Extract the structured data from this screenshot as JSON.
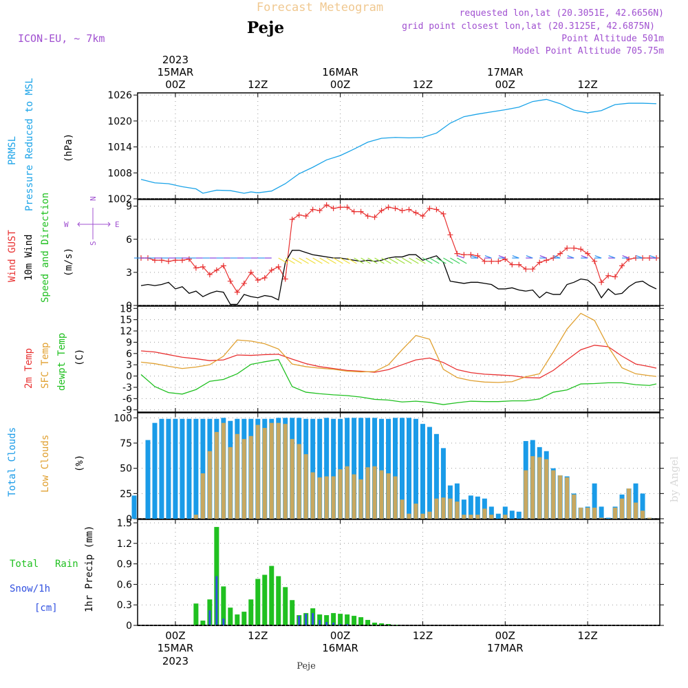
{
  "header": {
    "title": "Forecast Meteogram",
    "location": "Peje",
    "model": "ICON-EU, ~ 7km",
    "requested": "requested lon,lat (20.3051E, 42.6656N)",
    "grid": "grid point closest lon,lat (20.3125E, 42.6875N)",
    "altitude": "Point Altitude 501m",
    "model_altitude": "Model Point Altitude 705.75m",
    "footer_location": "Peje",
    "credit": "by Angel"
  },
  "time_axis": {
    "year": "2023",
    "ticks": [
      {
        "t": 0,
        "label": "00Z",
        "date": "15MAR",
        "year": "2023"
      },
      {
        "t": 12,
        "label": "12Z"
      },
      {
        "t": 24,
        "label": "00Z",
        "date": "16MAR"
      },
      {
        "t": 36,
        "label": "12Z"
      },
      {
        "t": 48,
        "label": "00Z",
        "date": "17MAR"
      },
      {
        "t": 60,
        "label": "12Z"
      }
    ],
    "t_min": -5.5,
    "t_max": 70.5
  },
  "colors": {
    "pressure": "#1aa3e8",
    "gust": "#e83030",
    "wind": "#000000",
    "temp": "#e83030",
    "sfc": "#e0a030",
    "dewpt": "#20c020",
    "total_cloud": "#1a9be8",
    "low_cloud": "#c8a860",
    "rain": "#20c020",
    "snow": "#3050e0",
    "label_purple": "#a050d0",
    "label_cyan": "#1aa3e8",
    "label_green": "#20c020",
    "label_orange": "#e0a030",
    "label_red": "#e83030"
  },
  "chart_data": [
    {
      "type": "line",
      "panel": "pressure",
      "labels": [
        "PRMSL",
        "Pressure Reduced to MSL"
      ],
      "ylabel": "(hPa)",
      "ylim": [
        1002,
        1026.5
      ],
      "yticks": [
        1002,
        1008,
        1014,
        1020,
        1026
      ],
      "series": [
        {
          "name": "PRMSL",
          "x": [
            -5,
            -3,
            -1,
            1,
            3,
            4,
            6,
            8,
            10,
            11,
            12,
            14,
            16,
            18,
            20,
            22,
            24,
            26,
            28,
            30,
            32,
            34,
            36,
            38,
            40,
            42,
            44,
            46,
            48,
            50,
            52,
            54,
            56,
            58,
            60,
            62,
            64,
            66,
            68,
            70
          ],
          "values": [
            1006.5,
            1005.7,
            1005.5,
            1004.8,
            1004.3,
            1003.3,
            1004,
            1003.9,
            1003.3,
            1003.6,
            1003.4,
            1003.8,
            1005.5,
            1007.8,
            1009.3,
            1011,
            1012,
            1013.5,
            1015.1,
            1016,
            1016.2,
            1016.1,
            1016.2,
            1017.2,
            1019.5,
            1021,
            1021.6,
            1022.1,
            1022.6,
            1023.2,
            1024.5,
            1025,
            1024,
            1022.5,
            1021.9,
            1022.4,
            1023.8,
            1024.1,
            1024.1,
            1024.0
          ]
        }
      ]
    },
    {
      "type": "line",
      "panel": "wind",
      "labels": [
        "Wind GUST",
        "10m Wind",
        "Speed and Direction"
      ],
      "ylabel": "(m/s)",
      "compass": {
        "n": "N",
        "s": "S",
        "w": "W",
        "e": "E"
      },
      "ylim": [
        0,
        9.6
      ],
      "yticks": [
        0,
        3,
        6,
        9
      ],
      "series": [
        {
          "name": "Wind GUST",
          "x": [
            -5,
            -4,
            -3,
            -2,
            -1,
            0,
            1,
            2,
            3,
            4,
            5,
            6,
            7,
            8,
            9,
            10,
            11,
            12,
            13,
            14,
            15,
            16,
            17,
            18,
            19,
            20,
            21,
            22,
            23,
            24,
            25,
            26,
            27,
            28,
            29,
            30,
            31,
            32,
            33,
            34,
            35,
            36,
            37,
            38,
            39,
            40,
            41,
            42,
            43,
            44,
            45,
            46,
            47,
            48,
            49,
            50,
            51,
            52,
            53,
            54,
            55,
            56,
            57,
            58,
            59,
            60,
            61,
            62,
            63,
            64,
            65,
            66,
            67,
            68,
            69,
            70
          ],
          "values": [
            4.3,
            4.3,
            4.1,
            4.1,
            4.0,
            4.1,
            4.1,
            4.2,
            3.4,
            3.5,
            2.8,
            3.2,
            3.6,
            2.2,
            1.2,
            2.0,
            3.0,
            2.3,
            2.5,
            3.2,
            3.5,
            2.4,
            7.8,
            8.2,
            8.1,
            8.7,
            8.6,
            9.1,
            8.8,
            8.9,
            8.9,
            8.5,
            8.5,
            8.1,
            8.0,
            8.6,
            8.9,
            8.8,
            8.6,
            8.7,
            8.4,
            8.1,
            8.8,
            8.7,
            8.3,
            6.4,
            4.7,
            4.6,
            4.6,
            4.5,
            4.0,
            4.0,
            4.0,
            4.2,
            3.7,
            3.7,
            3.3,
            3.3,
            3.9,
            4.1,
            4.3,
            4.7,
            5.2,
            5.2,
            5.1,
            4.7,
            4.0,
            2.1,
            2.7,
            2.6,
            3.6,
            4.2,
            4.3,
            4.3,
            4.3,
            4.3
          ]
        },
        {
          "name": "10m Wind",
          "x": [
            -5,
            -4,
            -3,
            -2,
            -1,
            0,
            1,
            2,
            3,
            4,
            5,
            6,
            7,
            8,
            9,
            10,
            11,
            12,
            13,
            14,
            15,
            16,
            17,
            18,
            19,
            20,
            21,
            22,
            23,
            24,
            25,
            26,
            27,
            28,
            29,
            30,
            31,
            32,
            33,
            34,
            35,
            36,
            37,
            38,
            39,
            40,
            41,
            42,
            43,
            44,
            45,
            46,
            47,
            48,
            49,
            50,
            51,
            52,
            53,
            54,
            55,
            56,
            57,
            58,
            59,
            60,
            61,
            62,
            63,
            64,
            65,
            66,
            67,
            68,
            69,
            70
          ],
          "values": [
            1.8,
            1.9,
            1.8,
            1.9,
            2.1,
            1.5,
            1.7,
            1.1,
            1.3,
            0.8,
            1.1,
            1.3,
            1.2,
            0.1,
            0.1,
            1.0,
            0.8,
            0.7,
            0.9,
            0.8,
            0.5,
            3.9,
            5.0,
            5.0,
            4.8,
            4.6,
            4.5,
            4.4,
            4.3,
            4.3,
            4.2,
            4.1,
            4.0,
            4.1,
            4.0,
            4.1,
            4.3,
            4.4,
            4.4,
            4.6,
            4.6,
            4.1,
            4.3,
            4.5,
            3.9,
            2.2,
            2.1,
            2.0,
            2.1,
            2.1,
            2.0,
            1.9,
            1.5,
            1.5,
            1.6,
            1.4,
            1.3,
            1.4,
            0.7,
            1.2,
            1.0,
            1.0,
            1.9,
            2.1,
            2.4,
            2.3,
            1.8,
            0.7,
            1.5,
            1.0,
            1.1,
            1.7,
            2.1,
            2.2,
            1.8,
            1.5
          ]
        }
      ]
    },
    {
      "type": "line",
      "panel": "temperature",
      "labels": [
        "2m Temp",
        "SFC Temp",
        "dewpt Temp"
      ],
      "ylabel": "(C)",
      "ylim": [
        -9.6,
        18.6
      ],
      "yticks": [
        -9,
        -6,
        -3,
        0,
        3,
        6,
        9,
        12,
        15,
        18
      ],
      "series": [
        {
          "name": "2m Temp",
          "x": [
            -5,
            -3,
            -1,
            1,
            3,
            5,
            7,
            9,
            11,
            13,
            15,
            17,
            19,
            21,
            23,
            25,
            27,
            29,
            31,
            33,
            35,
            37,
            39,
            41,
            43,
            45,
            47,
            49,
            51,
            53,
            55,
            57,
            59,
            61,
            63,
            65,
            67,
            69,
            70
          ],
          "values": [
            6.7,
            6.4,
            5.7,
            5.0,
            4.6,
            4.1,
            4.3,
            5.6,
            5.5,
            5.7,
            5.8,
            4.5,
            3.3,
            2.5,
            2.0,
            1.5,
            1.3,
            1.0,
            1.7,
            3.0,
            4.3,
            4.8,
            3.6,
            1.7,
            0.9,
            0.5,
            0.3,
            0.1,
            -0.4,
            -0.5,
            1.5,
            4.3,
            7.0,
            8.2,
            7.8,
            5.3,
            3.2,
            2.5,
            2.1
          ]
        },
        {
          "name": "SFC Temp",
          "x": [
            -5,
            -3,
            -1,
            1,
            3,
            5,
            7,
            9,
            11,
            13,
            15,
            17,
            19,
            21,
            23,
            25,
            27,
            29,
            31,
            33,
            35,
            37,
            39,
            41,
            43,
            45,
            47,
            49,
            51,
            53,
            55,
            57,
            59,
            61,
            63,
            65,
            67,
            69,
            70
          ],
          "values": [
            3.7,
            3.3,
            2.6,
            2.0,
            2.4,
            3.0,
            5.3,
            9.6,
            9.3,
            8.6,
            7.2,
            3.2,
            2.5,
            2.1,
            1.8,
            1.3,
            1.1,
            1.2,
            3.0,
            7.0,
            10.8,
            9.8,
            1.8,
            -0.4,
            -1.2,
            -1.6,
            -1.7,
            -1.5,
            -0.2,
            0.6,
            6.4,
            12.5,
            16.7,
            14.8,
            7.8,
            2.2,
            0.6,
            0.1,
            -0.1
          ]
        },
        {
          "name": "dewpt Temp",
          "x": [
            -5,
            -3,
            -1,
            1,
            3,
            5,
            7,
            9,
            11,
            13,
            15,
            17,
            19,
            21,
            23,
            25,
            27,
            29,
            31,
            33,
            35,
            37,
            39,
            41,
            43,
            45,
            47,
            49,
            51,
            53,
            55,
            57,
            59,
            61,
            63,
            65,
            67,
            69,
            70
          ],
          "values": [
            0.4,
            -2.8,
            -4.4,
            -4.8,
            -3.6,
            -1.4,
            -0.9,
            0.6,
            3.1,
            3.8,
            4.4,
            -2.8,
            -4.3,
            -4.7,
            -5.0,
            -5.2,
            -5.6,
            -6.2,
            -6.4,
            -6.9,
            -6.7,
            -7.0,
            -7.6,
            -7.1,
            -6.7,
            -6.8,
            -6.8,
            -6.6,
            -6.6,
            -6.1,
            -4.3,
            -3.7,
            -2.1,
            -2.0,
            -1.8,
            -1.8,
            -2.3,
            -2.5,
            -2.1
          ]
        }
      ]
    },
    {
      "type": "bar",
      "panel": "clouds",
      "labels": [
        "Total Clouds",
        "Low Clouds"
      ],
      "ylabel": "(%)",
      "ylim": [
        0,
        105
      ],
      "yticks": [
        0,
        25,
        50,
        75,
        100
      ],
      "x": [
        -6,
        -5,
        -4,
        -3,
        -2,
        -1,
        0,
        1,
        2,
        3,
        4,
        5,
        6,
        7,
        8,
        9,
        10,
        11,
        12,
        13,
        14,
        15,
        16,
        17,
        18,
        19,
        20,
        21,
        22,
        23,
        24,
        25,
        26,
        27,
        28,
        29,
        30,
        31,
        32,
        33,
        34,
        35,
        36,
        37,
        38,
        39,
        40,
        41,
        42,
        43,
        44,
        45,
        46,
        47,
        48,
        49,
        50,
        51,
        52,
        53,
        54,
        55,
        56,
        57,
        58,
        59,
        60,
        61,
        62,
        63,
        64,
        65,
        66,
        67,
        68,
        69,
        70
      ],
      "series": [
        {
          "name": "Total Clouds",
          "values": [
            23,
            0,
            78,
            95,
            99,
            99,
            99,
            99,
            99,
            99,
            99,
            99,
            99,
            100,
            97,
            99,
            99,
            99,
            99,
            99,
            99,
            100,
            100,
            100,
            100,
            99,
            99,
            99,
            100,
            99,
            99,
            100,
            100,
            100,
            100,
            100,
            99,
            99,
            100,
            100,
            100,
            99,
            94,
            91,
            84,
            70,
            33,
            35,
            19,
            23,
            22,
            20,
            12,
            5,
            12,
            8,
            7,
            77,
            78,
            71,
            67,
            50,
            43,
            42,
            25,
            11,
            12,
            35,
            12,
            1,
            12,
            24,
            30,
            35,
            25,
            1,
            0
          ]
        },
        {
          "name": "Low Clouds",
          "values": [
            0,
            0,
            0,
            0,
            0,
            0,
            0,
            0,
            0,
            4,
            45,
            67,
            86,
            95,
            71,
            84,
            79,
            82,
            93,
            90,
            95,
            95,
            94,
            79,
            74,
            64,
            46,
            41,
            42,
            42,
            49,
            52,
            44,
            39,
            51,
            52,
            48,
            45,
            42,
            19,
            5,
            15,
            5,
            7,
            20,
            21,
            20,
            17,
            4,
            4,
            4,
            10,
            4,
            0,
            4,
            0,
            0,
            48,
            62,
            61,
            59,
            48,
            43,
            41,
            24,
            11,
            11,
            11,
            1,
            0,
            11,
            20,
            30,
            16,
            8,
            1,
            0
          ]
        }
      ]
    },
    {
      "type": "bar",
      "panel": "precipitation",
      "labels": [
        "Total",
        "Rain",
        "Snow/1h",
        "[cm]"
      ],
      "ylabel": "1hr Precip (mm)",
      "ylim": [
        0,
        1.55
      ],
      "yticks": [
        0,
        0.3,
        0.6,
        0.9,
        1.2,
        1.5
      ],
      "x": [
        3,
        4,
        5,
        6,
        7,
        8,
        9,
        10,
        11,
        12,
        13,
        14,
        15,
        16,
        17,
        18,
        19,
        20,
        21,
        22,
        23,
        24,
        25,
        26,
        27,
        28,
        29,
        30,
        31,
        32
      ],
      "series": [
        {
          "name": "Total Rain",
          "values": [
            0.32,
            0.07,
            0.38,
            1.44,
            0.57,
            0.26,
            0.16,
            0.2,
            0.38,
            0.68,
            0.74,
            0.87,
            0.72,
            0.56,
            0.37,
            0.15,
            0.18,
            0.25,
            0.16,
            0.15,
            0.18,
            0.17,
            0.16,
            0.14,
            0.12,
            0.08,
            0.04,
            0.03,
            0.02,
            0.01
          ]
        },
        {
          "name": "Snow/1h",
          "values": [
            0,
            0,
            0.22,
            0.72,
            0.1,
            0,
            0,
            0,
            0,
            0,
            0,
            0,
            0,
            0,
            0,
            0.14,
            0.17,
            0.18,
            0.08,
            0.05,
            0.04,
            0.02,
            0.02,
            0.01,
            0,
            0,
            0,
            0,
            0,
            0
          ]
        }
      ]
    }
  ]
}
